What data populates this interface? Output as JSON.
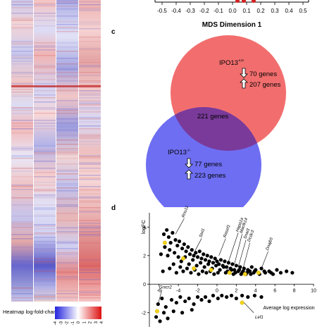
{
  "mds": {
    "ticks": [
      "-0.5",
      "-0.4",
      "-0.3",
      "-0.2",
      "-0.1",
      "0.0",
      "0.1",
      "0.2",
      "0.3",
      "0.4",
      "0.5"
    ],
    "xlabel": "MDS Dimension 1"
  },
  "heatmap": {
    "legend_title": "Heatmap log-fold-change",
    "legend_ticks": [
      "-4",
      "-3",
      "-2",
      "-1",
      "0",
      "1",
      "2",
      "3",
      "4"
    ],
    "colors": {
      "low": "#2222dd",
      "mid": "#ffffff",
      "high": "#dd1111"
    }
  },
  "venn": {
    "panel_label": "c",
    "set_a": {
      "name_base": "IPO13",
      "name_sup": "+/+",
      "down": "70 genes",
      "up": "207 genes",
      "color": "#f05a5a"
    },
    "set_b": {
      "name_base": "IPO13",
      "name_sup": "-/-",
      "down": "77 genes",
      "up": "223 genes",
      "color": "#5a5af0"
    },
    "overlap": "221 genes"
  },
  "scatter": {
    "panel_label": "d",
    "ylabel": "logFC",
    "xlabel": "Average log expression",
    "chart_data": {
      "type": "scatter",
      "xlim": [
        -7,
        10
      ],
      "ylim": [
        -3,
        5
      ],
      "xticks": [
        "-6",
        "-4",
        "-2",
        "0",
        "2",
        "4",
        "6",
        "8",
        "10"
      ],
      "yticks": [
        "4",
        "2",
        "0",
        "-2"
      ],
      "gene_labels": [
        "Rnu12",
        "Stxl1",
        "Rasef1",
        "Hapa1a",
        "Macfk14",
        "Snai3",
        "Dcdc3",
        "Dnajb5",
        "Grxcr2",
        "Lef1"
      ],
      "black_points": [
        [
          -5.5,
          3.5
        ],
        [
          -5.2,
          3.8
        ],
        [
          -5.0,
          3.3
        ],
        [
          -4.8,
          2.9
        ],
        [
          -4.6,
          3.6
        ],
        [
          -4.3,
          3.1
        ],
        [
          -4.1,
          2.7
        ],
        [
          -3.9,
          3.0
        ],
        [
          -3.6,
          2.5
        ],
        [
          -3.4,
          2.8
        ],
        [
          -3.2,
          2.3
        ],
        [
          -3.0,
          2.6
        ],
        [
          -2.8,
          2.1
        ],
        [
          -2.6,
          2.4
        ],
        [
          -2.4,
          2.0
        ],
        [
          -2.2,
          2.2
        ],
        [
          -2.0,
          1.9
        ],
        [
          -1.8,
          2.3
        ],
        [
          -1.6,
          1.8
        ],
        [
          -1.4,
          2.1
        ],
        [
          -1.2,
          1.7
        ],
        [
          -1.0,
          2.0
        ],
        [
          -0.8,
          1.6
        ],
        [
          -0.6,
          1.9
        ],
        [
          -0.4,
          1.5
        ],
        [
          -0.2,
          1.8
        ],
        [
          0.0,
          1.6
        ],
        [
          0.2,
          1.4
        ],
        [
          0.4,
          1.7
        ],
        [
          0.6,
          1.3
        ],
        [
          0.8,
          1.6
        ],
        [
          1.0,
          1.2
        ],
        [
          1.2,
          1.5
        ],
        [
          1.4,
          1.1
        ],
        [
          1.6,
          1.4
        ],
        [
          1.8,
          1.0
        ],
        [
          2.0,
          1.3
        ],
        [
          2.2,
          0.9
        ],
        [
          2.4,
          1.2
        ],
        [
          2.6,
          0.8
        ],
        [
          2.8,
          1.1
        ],
        [
          3.0,
          0.7
        ],
        [
          3.2,
          1.0
        ],
        [
          3.4,
          0.9
        ],
        [
          3.6,
          1.2
        ],
        [
          3.8,
          0.8
        ],
        [
          4.0,
          1.0
        ],
        [
          4.3,
          0.8
        ],
        [
          4.6,
          1.1
        ],
        [
          5.0,
          0.8
        ],
        [
          5.4,
          0.9
        ],
        [
          5.8,
          0.7
        ],
        [
          6.2,
          1.0
        ],
        [
          6.6,
          0.8
        ],
        [
          7.2,
          0.9
        ],
        [
          7.8,
          0.8
        ],
        [
          -5.8,
          2.1
        ],
        [
          -5.4,
          2.6
        ],
        [
          -5.1,
          2.0
        ],
        [
          -4.9,
          2.4
        ],
        [
          -4.4,
          2.2
        ],
        [
          -4.0,
          1.9
        ],
        [
          -3.7,
          1.6
        ],
        [
          -3.3,
          1.9
        ],
        [
          -2.9,
          1.4
        ],
        [
          -2.5,
          1.7
        ],
        [
          -2.1,
          1.3
        ],
        [
          -1.7,
          1.5
        ],
        [
          -1.3,
          1.2
        ],
        [
          -0.9,
          1.4
        ],
        [
          -0.5,
          1.1
        ],
        [
          -0.1,
          1.3
        ],
        [
          0.3,
          1.0
        ],
        [
          0.7,
          1.2
        ],
        [
          1.1,
          0.9
        ],
        [
          1.5,
          1.0
        ],
        [
          1.9,
          0.8
        ],
        [
          2.3,
          1.0
        ],
        [
          2.7,
          0.9
        ],
        [
          3.1,
          0.8
        ],
        [
          3.5,
          0.7
        ],
        [
          3.9,
          0.9
        ],
        [
          4.4,
          0.7
        ],
        [
          4.9,
          0.9
        ],
        [
          5.6,
          0.8
        ],
        [
          -4.5,
          1.4
        ],
        [
          -3.8,
          1.2
        ],
        [
          -3.1,
          1.1
        ],
        [
          -2.3,
          1.0
        ],
        [
          -1.5,
          0.9
        ],
        [
          -0.7,
          0.9
        ],
        [
          0.1,
          0.8
        ],
        [
          0.9,
          0.8
        ],
        [
          1.7,
          0.7
        ],
        [
          2.5,
          0.7
        ],
        [
          -5.6,
          0.9
        ],
        [
          -4.9,
          1.1
        ],
        [
          -4.2,
          0.8
        ],
        [
          -3.5,
          0.9
        ],
        [
          -2.7,
          0.8
        ],
        [
          -1.9,
          0.7
        ],
        [
          -1.1,
          0.8
        ],
        [
          -0.3,
          0.7
        ],
        [
          -6.1,
          -1.4
        ],
        [
          -5.7,
          -1.0
        ],
        [
          -5.3,
          -1.6
        ],
        [
          -4.7,
          -1.1
        ],
        [
          -4.2,
          -1.3
        ],
        [
          -3.8,
          -0.9
        ],
        [
          -3.3,
          -1.2
        ],
        [
          -2.9,
          -1.0
        ],
        [
          -2.4,
          -1.4
        ],
        [
          -2.0,
          -0.9
        ],
        [
          -1.6,
          -1.1
        ],
        [
          -1.2,
          -0.9
        ],
        [
          -0.8,
          -1.2
        ],
        [
          -0.4,
          -0.8
        ],
        [
          0.1,
          -1.0
        ],
        [
          0.5,
          -0.8
        ],
        [
          1.0,
          -0.9
        ],
        [
          1.5,
          -0.8
        ],
        [
          2.0,
          -1.0
        ],
        [
          2.6,
          -0.8
        ],
        [
          3.2,
          -0.9
        ],
        [
          3.9,
          -0.8
        ],
        [
          4.6,
          -0.9
        ],
        [
          -6.3,
          -2.3
        ],
        [
          -5.9,
          -2.6
        ],
        [
          -5.5,
          -2.0
        ],
        [
          -5.1,
          -2.4
        ],
        [
          -4.5,
          -1.9
        ],
        [
          -3.6,
          -2.0
        ],
        [
          -2.6,
          -1.8
        ]
      ],
      "yellow_points": [
        [
          -5.4,
          2.9
        ],
        [
          -3.5,
          1.8
        ],
        [
          -2.4,
          1.1
        ],
        [
          -0.6,
          1.0
        ],
        [
          1.3,
          0.8
        ],
        [
          2.9,
          0.7
        ],
        [
          4.3,
          0.8
        ],
        [
          -6.2,
          -1.9
        ],
        [
          2.6,
          -1.3
        ]
      ]
    }
  }
}
